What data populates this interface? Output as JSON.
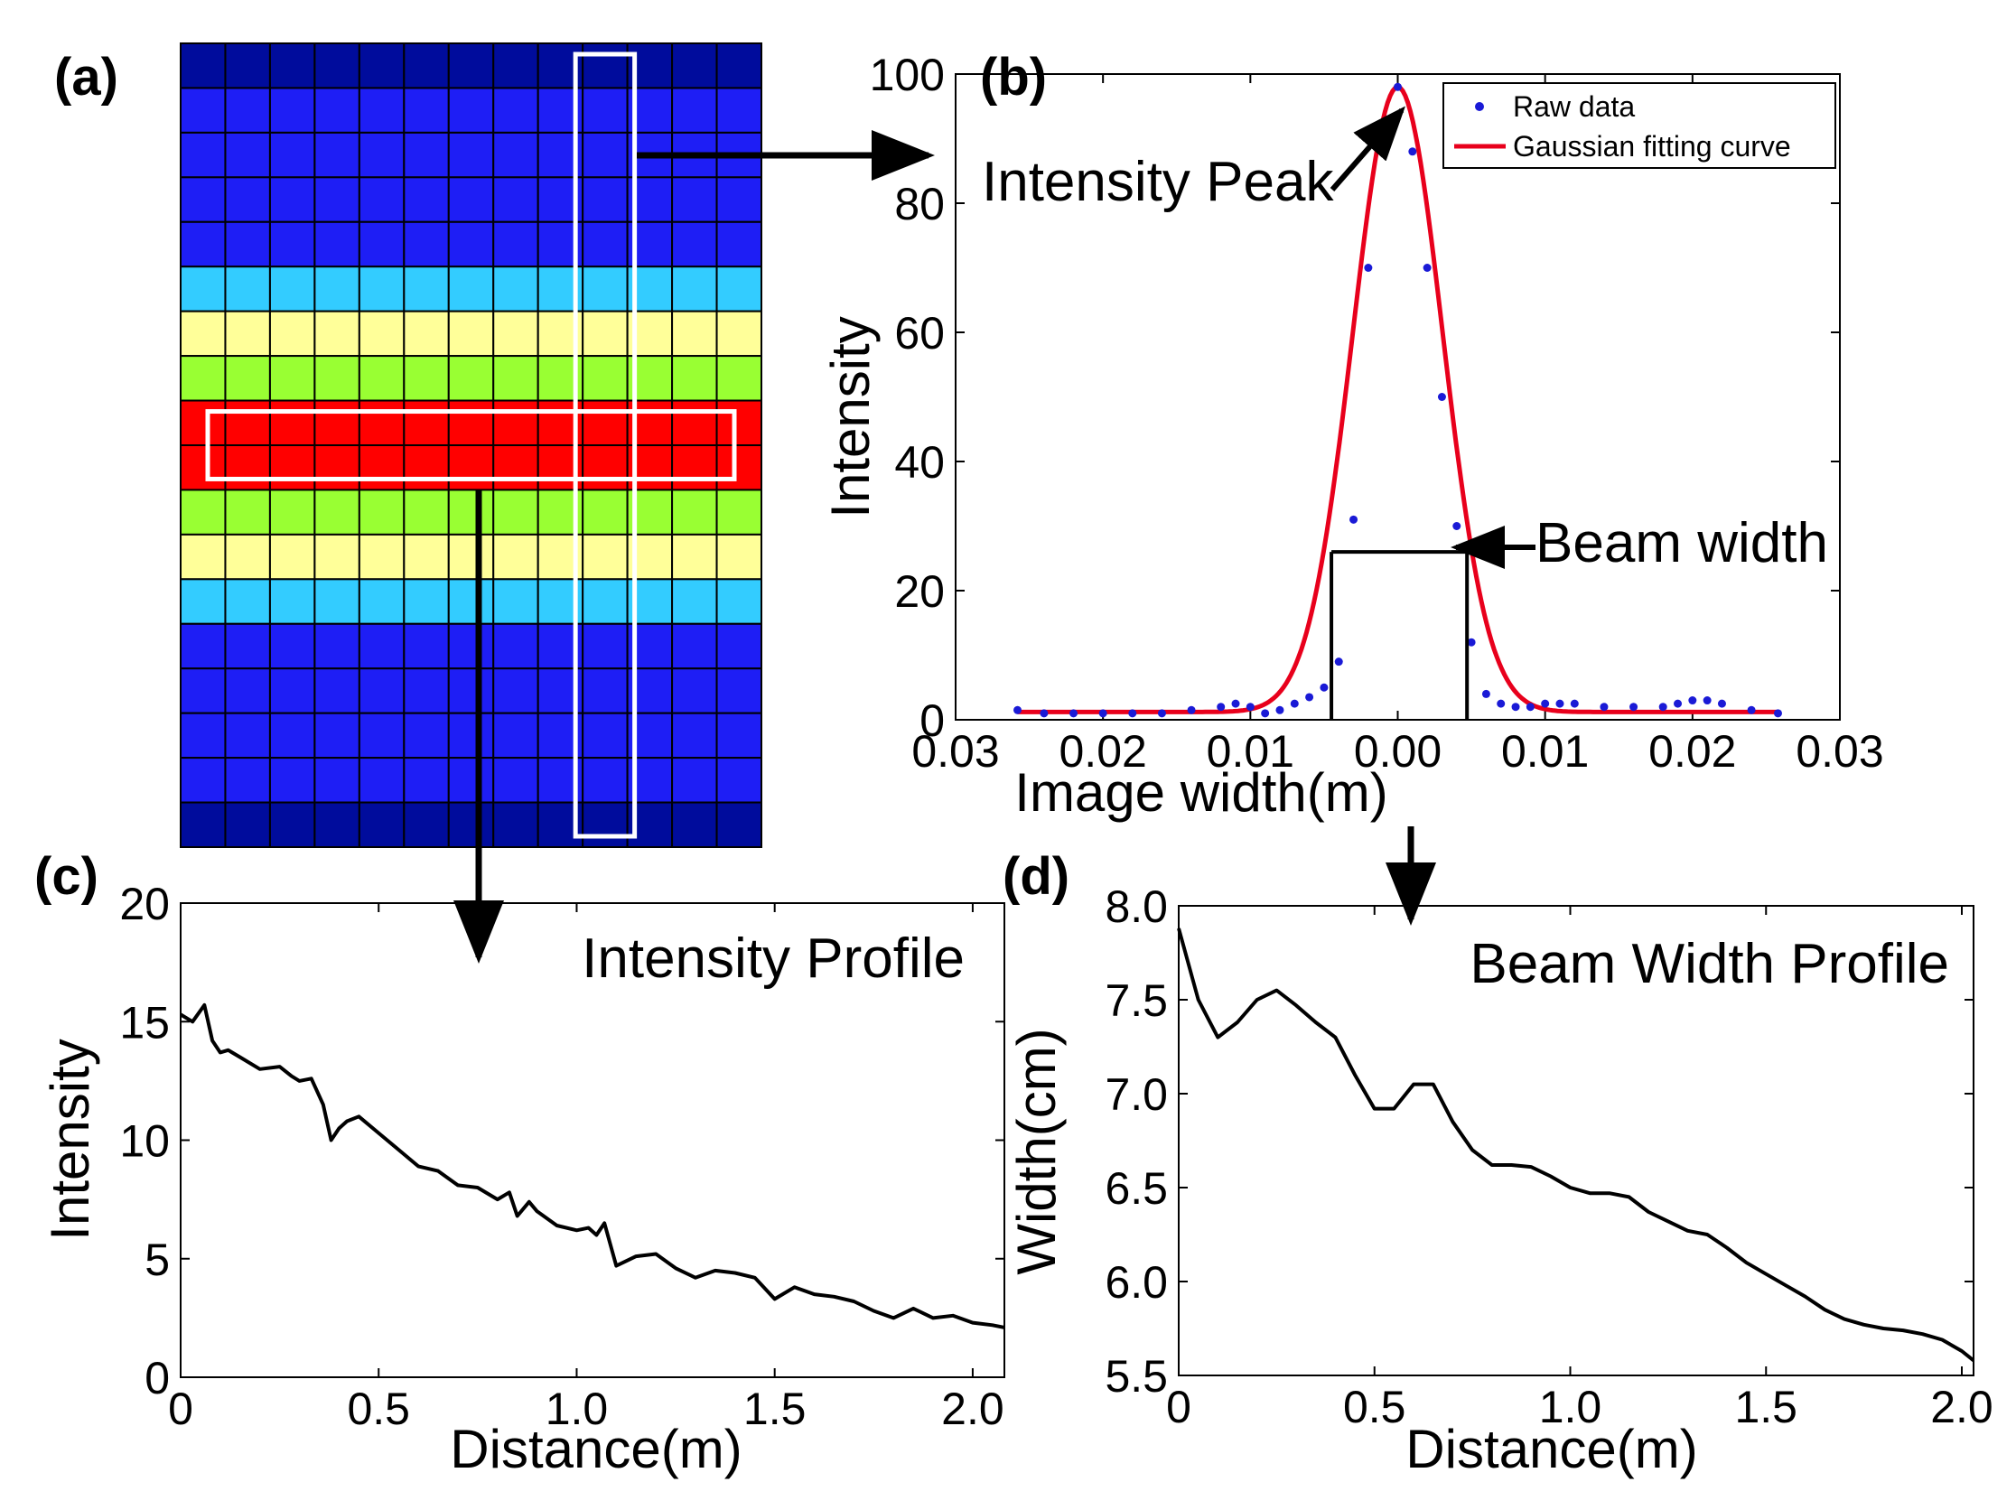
{
  "chart_data": [
    {
      "type": "heatmap",
      "panel_label": "(a)",
      "title": "",
      "rows": 18,
      "cols": 13,
      "row_colors": [
        "#000c9c",
        "#1e1ef5",
        "#1e1ef5",
        "#1e1ef5",
        "#1e1ef5",
        "#33ccff",
        "#ffff99",
        "#99ff33",
        "#ff0000",
        "#ff0000",
        "#99ff33",
        "#ffff99",
        "#33ccff",
        "#1e1ef5",
        "#1e1ef5",
        "#1e1ef5",
        "#1e1ef5",
        "#000c9c"
      ],
      "highlight_color": "#ffffff",
      "selected_column": 9,
      "selected_rows": [
        8,
        9
      ]
    },
    {
      "type": "line",
      "panel_label": "(b)",
      "xlabel": "Image width(m)",
      "ylabel": "Intensity",
      "xticks": [
        "0.03",
        "0.02",
        "0.01",
        "0.00",
        "0.01",
        "0.02",
        "0.03"
      ],
      "yticks": [
        "0",
        "20",
        "40",
        "60",
        "80",
        "100"
      ],
      "xlim": [
        -0.03,
        0.03
      ],
      "ylim": [
        0,
        100
      ],
      "legend_position": "top-right",
      "annotations": [
        "Intensity Peak",
        "Beam width"
      ],
      "beam_width_level": 26,
      "beam_width_edges": [
        -0.0045,
        0.0047
      ],
      "series": [
        {
          "name": "Raw data",
          "style": "markers",
          "color": "#1a1ad6",
          "x": [
            -0.0258,
            -0.024,
            -0.022,
            -0.02,
            -0.018,
            -0.016,
            -0.014,
            -0.012,
            -0.011,
            -0.01,
            -0.009,
            -0.008,
            -0.007,
            -0.006,
            -0.005,
            -0.004,
            -0.003,
            -0.002,
            -0.001,
            0.0,
            0.001,
            0.002,
            0.003,
            0.004,
            0.005,
            0.006,
            0.007,
            0.008,
            0.009,
            0.01,
            0.011,
            0.012,
            0.014,
            0.016,
            0.018,
            0.019,
            0.02,
            0.021,
            0.022,
            0.024,
            0.0258
          ],
          "y": [
            1.5,
            1.0,
            1.0,
            1.0,
            1.0,
            1.0,
            1.5,
            2.0,
            2.5,
            2.0,
            1.0,
            1.5,
            2.5,
            3.5,
            5.0,
            9.0,
            31.0,
            70.0,
            88.0,
            98.0,
            88.0,
            70.0,
            50.0,
            30.0,
            12.0,
            4.0,
            2.5,
            2.0,
            2.0,
            2.5,
            2.5,
            2.5,
            2.0,
            2.0,
            2.0,
            2.5,
            3.0,
            3.0,
            2.5,
            1.5,
            1.0
          ]
        },
        {
          "name": "Gaussian fitting curve",
          "style": "line",
          "color": "#e8001c",
          "peak_x": 0.0,
          "peak_y": 98,
          "sigma": 0.00305,
          "baseline": 1.2,
          "x_range": [
            -0.0258,
            0.0258
          ]
        }
      ]
    },
    {
      "type": "line",
      "panel_label": "(c)",
      "title": "Intensity Profile",
      "xlabel": "Distance(m)",
      "ylabel": "Intensity",
      "xticks": [
        "0",
        "0.5",
        "1.0",
        "1.5",
        "2.0"
      ],
      "yticks": [
        "0",
        "5",
        "10",
        "15",
        "20"
      ],
      "xlim": [
        0,
        2.08
      ],
      "ylim": [
        0,
        20
      ],
      "series": [
        {
          "color": "#000000",
          "x": [
            0.0,
            0.03,
            0.06,
            0.08,
            0.1,
            0.12,
            0.15,
            0.2,
            0.25,
            0.28,
            0.3,
            0.33,
            0.36,
            0.38,
            0.4,
            0.42,
            0.45,
            0.5,
            0.55,
            0.6,
            0.65,
            0.7,
            0.75,
            0.8,
            0.83,
            0.85,
            0.88,
            0.9,
            0.95,
            1.0,
            1.03,
            1.05,
            1.07,
            1.1,
            1.15,
            1.2,
            1.25,
            1.3,
            1.35,
            1.4,
            1.45,
            1.5,
            1.55,
            1.6,
            1.65,
            1.7,
            1.75,
            1.8,
            1.85,
            1.9,
            1.95,
            2.0,
            2.05,
            2.08
          ],
          "y": [
            15.3,
            15.0,
            15.7,
            14.2,
            13.7,
            13.8,
            13.5,
            13.0,
            13.1,
            12.7,
            12.5,
            12.6,
            11.5,
            10.0,
            10.5,
            10.8,
            11.0,
            10.3,
            9.6,
            8.9,
            8.7,
            8.1,
            8.0,
            7.5,
            7.8,
            6.8,
            7.4,
            7.0,
            6.4,
            6.2,
            6.3,
            6.0,
            6.5,
            4.7,
            5.1,
            5.2,
            4.6,
            4.2,
            4.5,
            4.4,
            4.2,
            3.3,
            3.8,
            3.5,
            3.4,
            3.2,
            2.8,
            2.5,
            2.9,
            2.5,
            2.6,
            2.3,
            2.2,
            2.1
          ]
        }
      ]
    },
    {
      "type": "line",
      "panel_label": "(d)",
      "title": "Beam Width Profile",
      "xlabel": "Distance(m)",
      "ylabel": "Width(cm)",
      "xticks": [
        "0",
        "0.5",
        "1.0",
        "1.5",
        "2.0"
      ],
      "yticks": [
        "5.5",
        "6.0",
        "6.5",
        "7.0",
        "7.5",
        "8.0"
      ],
      "xlim": [
        0,
        2.03
      ],
      "ylim": [
        5.5,
        8.0
      ],
      "series": [
        {
          "color": "#000000",
          "x": [
            0.0,
            0.05,
            0.1,
            0.15,
            0.2,
            0.25,
            0.3,
            0.35,
            0.4,
            0.45,
            0.5,
            0.55,
            0.6,
            0.65,
            0.7,
            0.75,
            0.8,
            0.85,
            0.9,
            0.95,
            1.0,
            1.05,
            1.1,
            1.15,
            1.2,
            1.25,
            1.3,
            1.35,
            1.4,
            1.45,
            1.5,
            1.55,
            1.6,
            1.65,
            1.7,
            1.75,
            1.8,
            1.85,
            1.9,
            1.95,
            2.0,
            2.03
          ],
          "y": [
            7.88,
            7.5,
            7.3,
            7.38,
            7.5,
            7.55,
            7.47,
            7.38,
            7.3,
            7.1,
            6.92,
            6.92,
            7.05,
            7.05,
            6.85,
            6.7,
            6.62,
            6.62,
            6.61,
            6.56,
            6.5,
            6.47,
            6.47,
            6.45,
            6.37,
            6.32,
            6.27,
            6.25,
            6.18,
            6.1,
            6.04,
            5.98,
            5.92,
            5.85,
            5.8,
            5.77,
            5.75,
            5.74,
            5.72,
            5.69,
            5.63,
            5.58
          ]
        }
      ]
    }
  ]
}
